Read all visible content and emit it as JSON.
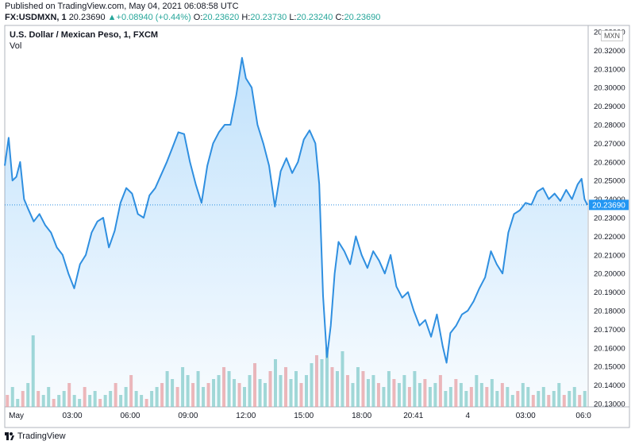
{
  "header": {
    "published": "Published on TradingView.com, May 04, 2021 06:08:58 UTC",
    "symbol": "FX:USDMXN, 1",
    "last": "20.23690",
    "arrow": "▲",
    "change": "+0.08940 (+0.44%)",
    "o_label": "O:",
    "o_value": "20.23620",
    "h_label": "H:",
    "h_value": "20.23730",
    "l_label": "L:",
    "l_value": "20.23240",
    "c_label": "C:",
    "c_value": "20.23690"
  },
  "chart_data": {
    "type": "area",
    "title": "U.S. Dollar / Mexican Peso, 1, FXCM",
    "volume_label": "Vol",
    "currency_badge": "MXN",
    "last_price_label": "20.23690",
    "last_price": 20.2369,
    "ylim": [
      20.13,
      20.33
    ],
    "y_ticks": [
      "20.13000",
      "20.14000",
      "20.15000",
      "20.16000",
      "20.17000",
      "20.18000",
      "20.19000",
      "20.20000",
      "20.21000",
      "20.22000",
      "20.23000",
      "20.24000",
      "20.25000",
      "20.26000",
      "20.27000",
      "20.28000",
      "20.29000",
      "20.30000",
      "20.31000",
      "20.32000",
      "20.33000"
    ],
    "x_ticks": [
      "May",
      "03:00",
      "06:00",
      "09:00",
      "12:00",
      "15:00",
      "18:00",
      "20:41",
      "4",
      "03:00",
      "06:0"
    ],
    "xlim": [
      0,
      30.2
    ],
    "x_tick_positions": [
      0.6,
      3.5,
      6.5,
      9.5,
      12.5,
      15.5,
      18.5,
      21.18,
      24,
      27,
      30
    ],
    "series": [
      {
        "name": "USDMXN",
        "points": [
          [
            0,
            20.258
          ],
          [
            0.2,
            20.273
          ],
          [
            0.4,
            20.25
          ],
          [
            0.6,
            20.252
          ],
          [
            0.8,
            20.26
          ],
          [
            1.0,
            20.24
          ],
          [
            1.2,
            20.235
          ],
          [
            1.5,
            20.228
          ],
          [
            1.8,
            20.232
          ],
          [
            2.1,
            20.226
          ],
          [
            2.4,
            20.222
          ],
          [
            2.7,
            20.214
          ],
          [
            3.0,
            20.21
          ],
          [
            3.3,
            20.2
          ],
          [
            3.6,
            20.192
          ],
          [
            3.9,
            20.205
          ],
          [
            4.2,
            20.21
          ],
          [
            4.5,
            20.222
          ],
          [
            4.8,
            20.228
          ],
          [
            5.1,
            20.23
          ],
          [
            5.4,
            20.214
          ],
          [
            5.7,
            20.223
          ],
          [
            6.0,
            20.238
          ],
          [
            6.3,
            20.246
          ],
          [
            6.6,
            20.243
          ],
          [
            6.9,
            20.232
          ],
          [
            7.2,
            20.23
          ],
          [
            7.5,
            20.242
          ],
          [
            7.8,
            20.246
          ],
          [
            8.1,
            20.253
          ],
          [
            8.4,
            20.26
          ],
          [
            8.7,
            20.268
          ],
          [
            9.0,
            20.276
          ],
          [
            9.3,
            20.275
          ],
          [
            9.6,
            20.26
          ],
          [
            9.9,
            20.248
          ],
          [
            10.2,
            20.238
          ],
          [
            10.5,
            20.258
          ],
          [
            10.8,
            20.27
          ],
          [
            11.1,
            20.276
          ],
          [
            11.4,
            20.28
          ],
          [
            11.7,
            20.28
          ],
          [
            12.0,
            20.296
          ],
          [
            12.3,
            20.316
          ],
          [
            12.5,
            20.305
          ],
          [
            12.8,
            20.3
          ],
          [
            13.1,
            20.28
          ],
          [
            13.4,
            20.27
          ],
          [
            13.7,
            20.258
          ],
          [
            14.0,
            20.236
          ],
          [
            14.3,
            20.255
          ],
          [
            14.6,
            20.262
          ],
          [
            14.9,
            20.254
          ],
          [
            15.2,
            20.26
          ],
          [
            15.5,
            20.272
          ],
          [
            15.8,
            20.277
          ],
          [
            16.1,
            20.27
          ],
          [
            16.3,
            20.248
          ],
          [
            16.5,
            20.188
          ],
          [
            16.7,
            20.155
          ],
          [
            16.9,
            20.172
          ],
          [
            17.1,
            20.2
          ],
          [
            17.3,
            20.217
          ],
          [
            17.6,
            20.212
          ],
          [
            17.9,
            20.205
          ],
          [
            18.2,
            20.22
          ],
          [
            18.5,
            20.21
          ],
          [
            18.8,
            20.203
          ],
          [
            19.1,
            20.212
          ],
          [
            19.4,
            20.207
          ],
          [
            19.7,
            20.2
          ],
          [
            20.0,
            20.21
          ],
          [
            20.3,
            20.193
          ],
          [
            20.6,
            20.187
          ],
          [
            20.9,
            20.19
          ],
          [
            21.2,
            20.18
          ],
          [
            21.5,
            20.172
          ],
          [
            21.8,
            20.175
          ],
          [
            22.1,
            20.166
          ],
          [
            22.4,
            20.178
          ],
          [
            22.7,
            20.161
          ],
          [
            22.9,
            20.152
          ],
          [
            23.1,
            20.168
          ],
          [
            23.4,
            20.172
          ],
          [
            23.7,
            20.178
          ],
          [
            24.0,
            20.18
          ],
          [
            24.3,
            20.185
          ],
          [
            24.6,
            20.192
          ],
          [
            24.9,
            20.198
          ],
          [
            25.2,
            20.212
          ],
          [
            25.5,
            20.205
          ],
          [
            25.8,
            20.2
          ],
          [
            26.1,
            20.222
          ],
          [
            26.4,
            20.232
          ],
          [
            26.7,
            20.234
          ],
          [
            27.0,
            20.238
          ],
          [
            27.3,
            20.237
          ],
          [
            27.6,
            20.244
          ],
          [
            27.9,
            20.246
          ],
          [
            28.2,
            20.24
          ],
          [
            28.5,
            20.243
          ],
          [
            28.8,
            20.239
          ],
          [
            29.1,
            20.245
          ],
          [
            29.4,
            20.24
          ],
          [
            29.7,
            20.248
          ],
          [
            29.9,
            20.251
          ],
          [
            30.05,
            20.24
          ],
          [
            30.2,
            20.2369
          ]
        ]
      }
    ],
    "volume": [
      3,
      5,
      2,
      4,
      6,
      18,
      4,
      3,
      5,
      2,
      3,
      4,
      6,
      3,
      2,
      5,
      3,
      4,
      2,
      3,
      4,
      6,
      3,
      5,
      8,
      4,
      3,
      2,
      4,
      5,
      6,
      9,
      7,
      5,
      10,
      8,
      6,
      9,
      5,
      6,
      7,
      8,
      10,
      9,
      7,
      6,
      5,
      8,
      11,
      7,
      6,
      9,
      12,
      8,
      10,
      7,
      9,
      6,
      8,
      11,
      13,
      12,
      15,
      10,
      9,
      14,
      8,
      6,
      10,
      9,
      7,
      8,
      6,
      5,
      9,
      7,
      6,
      8,
      5,
      9,
      6,
      7,
      5,
      6,
      8,
      4,
      5,
      7,
      6,
      4,
      5,
      8,
      6,
      5,
      7,
      4,
      6,
      5,
      3,
      4,
      6,
      5,
      3,
      4,
      5,
      3,
      4,
      6,
      3,
      4,
      5,
      3,
      4
    ]
  }
}
